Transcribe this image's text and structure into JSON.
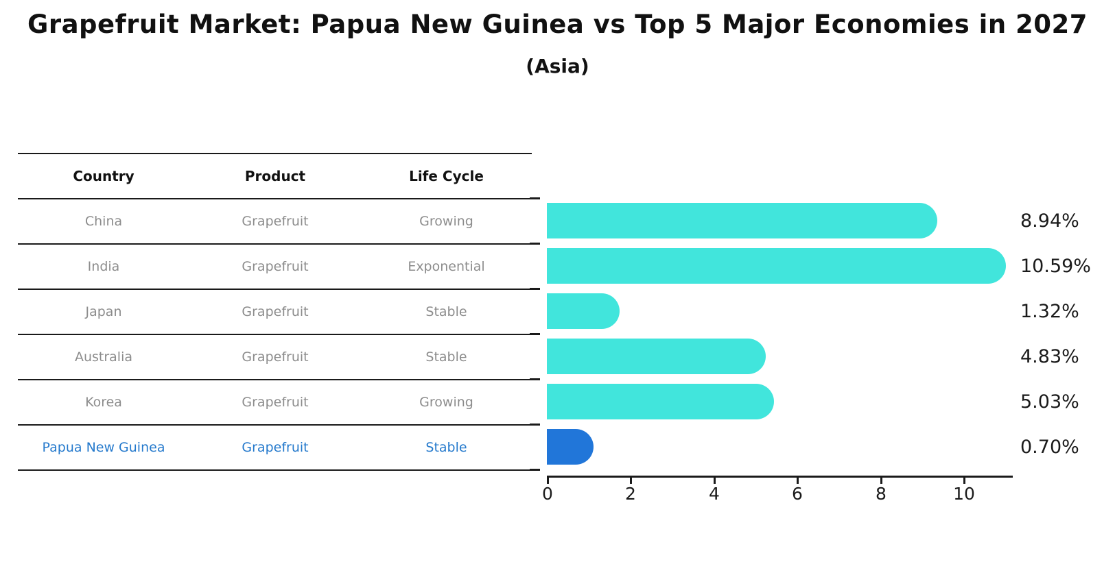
{
  "page": {
    "title": "Grapefruit Market: Papua New Guinea vs Top 5 Major Economies in 2027",
    "subtitle": "(Asia)"
  },
  "table": {
    "headers": {
      "country": "Country",
      "product": "Product",
      "life_cycle": "Life Cycle"
    },
    "rows": [
      {
        "country": "China",
        "product": "Grapefruit",
        "life_cycle": "Growing"
      },
      {
        "country": "India",
        "product": "Grapefruit",
        "life_cycle": "Exponential"
      },
      {
        "country": "Japan",
        "product": "Grapefruit",
        "life_cycle": "Stable"
      },
      {
        "country": "Australia",
        "product": "Grapefruit",
        "life_cycle": "Stable"
      },
      {
        "country": "Korea",
        "product": "Grapefruit",
        "life_cycle": "Growing"
      },
      {
        "country": "Papua New Guinea",
        "product": "Grapefruit",
        "life_cycle": "Stable"
      }
    ],
    "highlight_row": "Papua New Guinea"
  },
  "chart_data": {
    "type": "bar",
    "orientation": "horizontal",
    "title": "Grapefruit Market: Papua New Guinea vs Top 5 Major Economies in 2027",
    "subtitle": "(Asia)",
    "categories": [
      "China",
      "India",
      "Japan",
      "Australia",
      "Korea",
      "Papua New Guinea"
    ],
    "values": [
      8.94,
      10.59,
      1.32,
      4.83,
      5.03,
      0.7
    ],
    "value_labels": [
      "8.94%",
      "10.59%",
      "1.32%",
      "4.83%",
      "5.03%",
      "0.70%"
    ],
    "x_ticks": [
      "0",
      "2",
      "4",
      "6",
      "8",
      "10"
    ],
    "xlim": [
      0,
      11.2
    ],
    "grid": false,
    "legend": false,
    "bar_color": "#41e5dc",
    "highlight_color": "#2176d9",
    "highlight_category": "Papua New Guinea"
  },
  "colors": {
    "text_primary": "#111111",
    "text_muted": "#8c8c8c",
    "highlight_text": "#2479cc",
    "axis": "#1a1a1a"
  }
}
